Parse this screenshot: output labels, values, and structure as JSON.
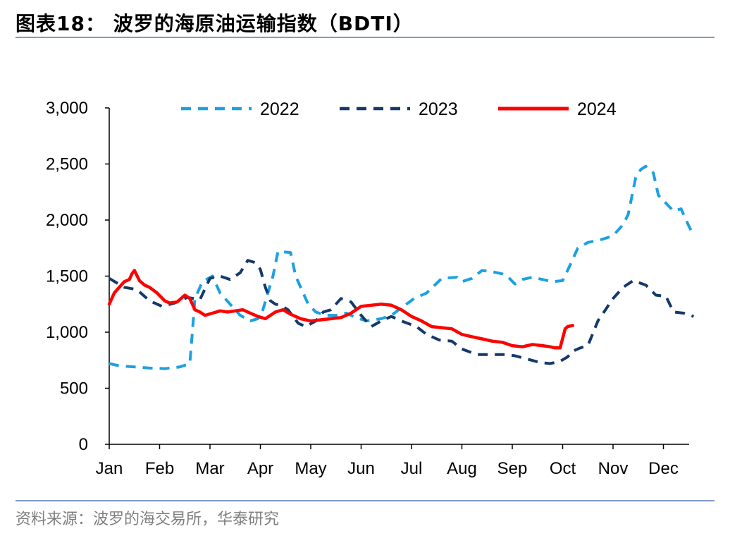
{
  "header": {
    "title": "图表18：  波罗的海原油运输指数（BDTI）"
  },
  "footer": {
    "source": "资料来源：波罗的海交易所，华泰研究"
  },
  "chart_data": {
    "type": "line",
    "title": "",
    "xlabel": "",
    "ylabel": "",
    "x_ticks": [
      "Jan",
      "Feb",
      "Mar",
      "Apr",
      "May",
      "Jun",
      "Jul",
      "Aug",
      "Sep",
      "Oct",
      "Nov",
      "Dec"
    ],
    "y_ticks": [
      0,
      500,
      1000,
      1500,
      2000,
      2500,
      3000
    ],
    "y_tick_labels": [
      "0",
      "500",
      "1,000",
      "1,500",
      "2,000",
      "2,500",
      "3,000"
    ],
    "ylim": [
      0,
      3000
    ],
    "xlim": [
      0,
      11.6
    ],
    "grid": false,
    "legend": "top",
    "series": [
      {
        "name": "2022",
        "color": "#1ba1e2",
        "style": "dashed",
        "x": [
          0,
          0.2,
          0.5,
          0.8,
          1.1,
          1.4,
          1.6,
          1.65,
          1.7,
          1.85,
          2.05,
          2.2,
          2.4,
          2.6,
          2.8,
          2.95,
          3.05,
          3.15,
          3.25,
          3.35,
          3.6,
          3.7,
          3.8,
          3.95,
          4.1,
          4.3,
          4.5,
          4.7,
          4.9,
          5.1,
          5.4,
          5.6,
          5.75,
          5.9,
          6.05,
          6.3,
          6.6,
          6.9,
          7.0,
          7.2,
          7.4,
          7.6,
          7.8,
          7.9,
          8.05,
          8.2,
          8.4,
          8.6,
          8.8,
          9.0,
          9.15,
          9.3,
          9.5,
          9.8,
          10.0,
          10.2,
          10.3,
          10.45,
          10.55,
          10.65,
          10.8,
          10.9,
          11.05,
          11.2,
          11.35,
          11.5,
          11.6
        ],
        "values": [
          720,
          700,
          690,
          680,
          675,
          690,
          720,
          1000,
          1300,
          1450,
          1500,
          1350,
          1250,
          1150,
          1100,
          1120,
          1200,
          1350,
          1500,
          1720,
          1710,
          1500,
          1400,
          1250,
          1180,
          1150,
          1150,
          1170,
          1130,
          1100,
          1120,
          1150,
          1200,
          1250,
          1300,
          1350,
          1480,
          1490,
          1450,
          1480,
          1550,
          1540,
          1520,
          1500,
          1430,
          1470,
          1490,
          1470,
          1450,
          1460,
          1600,
          1750,
          1800,
          1830,
          1860,
          1960,
          2050,
          2380,
          2450,
          2480,
          2420,
          2220,
          2150,
          2080,
          2100,
          1950,
          1860
        ]
      },
      {
        "name": "2023",
        "color": "#14396a",
        "style": "dashed",
        "x": [
          0,
          0.3,
          0.55,
          0.8,
          1.05,
          1.3,
          1.55,
          1.8,
          2.0,
          2.2,
          2.4,
          2.6,
          2.75,
          2.9,
          3.0,
          3.1,
          3.2,
          3.3,
          3.4,
          3.55,
          3.75,
          3.9,
          4.1,
          4.25,
          4.4,
          4.6,
          4.8,
          5.0,
          5.2,
          5.4,
          5.6,
          5.8,
          6.1,
          6.3,
          6.55,
          6.8,
          7.0,
          7.3,
          7.6,
          7.85,
          8.05,
          8.3,
          8.55,
          8.75,
          8.95,
          9.1,
          9.2,
          9.35,
          9.5,
          9.7,
          9.85,
          10.0,
          10.2,
          10.4,
          10.65,
          10.85,
          11.05,
          11.2,
          11.4,
          11.6
        ],
        "values": [
          1480,
          1400,
          1380,
          1280,
          1230,
          1260,
          1310,
          1290,
          1480,
          1500,
          1470,
          1530,
          1640,
          1620,
          1560,
          1400,
          1280,
          1250,
          1240,
          1200,
          1080,
          1050,
          1100,
          1180,
          1200,
          1300,
          1270,
          1150,
          1050,
          1100,
          1140,
          1100,
          1050,
          980,
          930,
          920,
          850,
          800,
          800,
          800,
          790,
          760,
          730,
          720,
          740,
          780,
          830,
          860,
          880,
          1100,
          1200,
          1300,
          1400,
          1460,
          1420,
          1330,
          1320,
          1180,
          1170,
          1140
        ]
      },
      {
        "name": "2024",
        "color": "#ff0000",
        "style": "solid",
        "x": [
          0,
          0.1,
          0.2,
          0.3,
          0.4,
          0.45,
          0.5,
          0.6,
          0.7,
          0.8,
          0.95,
          1.1,
          1.2,
          1.35,
          1.5,
          1.6,
          1.7,
          1.8,
          1.9,
          2.05,
          2.2,
          2.35,
          2.5,
          2.65,
          2.8,
          2.95,
          3.1,
          3.3,
          3.45,
          3.6,
          3.8,
          4.0,
          4.2,
          4.4,
          4.6,
          4.8,
          5.0,
          5.2,
          5.4,
          5.6,
          5.8,
          6.0,
          6.2,
          6.4,
          6.6,
          6.8,
          7.0,
          7.2,
          7.4,
          7.6,
          7.8,
          8.0,
          8.2,
          8.4,
          8.6,
          8.75,
          8.85,
          8.95,
          9.05,
          9.1,
          9.2
        ],
        "values": [
          1250,
          1350,
          1400,
          1450,
          1470,
          1520,
          1550,
          1460,
          1420,
          1400,
          1350,
          1280,
          1260,
          1270,
          1330,
          1300,
          1200,
          1180,
          1150,
          1170,
          1190,
          1180,
          1190,
          1200,
          1170,
          1140,
          1120,
          1180,
          1200,
          1160,
          1120,
          1100,
          1110,
          1120,
          1130,
          1170,
          1230,
          1240,
          1250,
          1240,
          1200,
          1140,
          1100,
          1050,
          1040,
          1030,
          980,
          960,
          940,
          920,
          910,
          880,
          870,
          890,
          880,
          870,
          860,
          860,
          1030,
          1050,
          1060
        ]
      }
    ]
  }
}
